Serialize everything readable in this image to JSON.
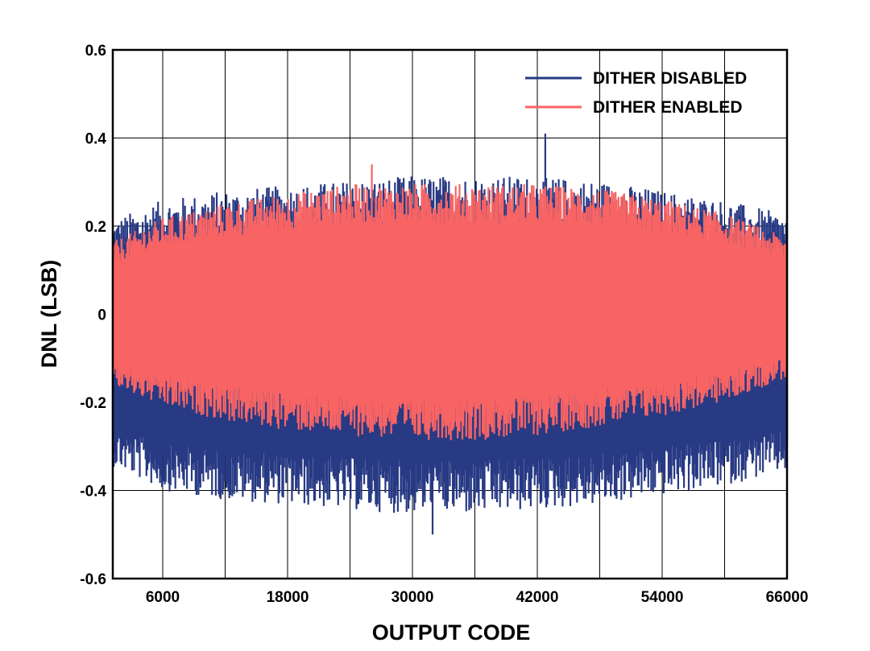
{
  "chart_data": {
    "type": "line",
    "xlabel": "OUTPUT CODE",
    "ylabel": "DNL (LSB)",
    "xlim": [
      1200,
      66000
    ],
    "ylim": [
      -0.6,
      0.6
    ],
    "x_ticks": [
      6000,
      18000,
      30000,
      42000,
      54000,
      66000
    ],
    "x_tick_labels": [
      "6000",
      "18000",
      "30000",
      "42000",
      "54000",
      "66000"
    ],
    "x_grid": [
      12000,
      24000,
      36000,
      48000,
      60000
    ],
    "y_ticks": [
      -0.6,
      -0.4,
      -0.2,
      0,
      0.2,
      0.4,
      0.6
    ],
    "y_tick_labels": [
      "-0.6",
      "-0.4",
      "-0.2",
      "0",
      "0.2",
      "0.4",
      "0.6"
    ],
    "grid": true,
    "legend_position": "top-right",
    "series": [
      {
        "name": "DITHER DISABLED",
        "color": "#283A84",
        "envelope_x": [
          1200,
          6000,
          12000,
          18000,
          24000,
          30000,
          36000,
          42000,
          48000,
          54000,
          60000,
          66000
        ],
        "upper": [
          0.19,
          0.23,
          0.25,
          0.26,
          0.27,
          0.28,
          0.28,
          0.28,
          0.27,
          0.25,
          0.23,
          0.2
        ],
        "lower": [
          -0.32,
          -0.37,
          -0.39,
          -0.4,
          -0.41,
          -0.42,
          -0.42,
          -0.41,
          -0.4,
          -0.38,
          -0.36,
          -0.33
        ],
        "peak_max": 0.41,
        "peak_min": -0.5
      },
      {
        "name": "DITHER ENABLED",
        "color": "#F86464",
        "envelope_x": [
          1200,
          6000,
          12000,
          18000,
          24000,
          30000,
          36000,
          42000,
          48000,
          54000,
          60000,
          66000
        ],
        "upper": [
          0.15,
          0.2,
          0.23,
          0.25,
          0.27,
          0.27,
          0.27,
          0.27,
          0.26,
          0.24,
          0.21,
          0.16
        ],
        "lower": [
          -0.15,
          -0.19,
          -0.22,
          -0.24,
          -0.25,
          -0.26,
          -0.26,
          -0.25,
          -0.23,
          -0.21,
          -0.18,
          -0.13
        ],
        "peak_max": 0.34,
        "peak_min": -0.28
      }
    ]
  }
}
